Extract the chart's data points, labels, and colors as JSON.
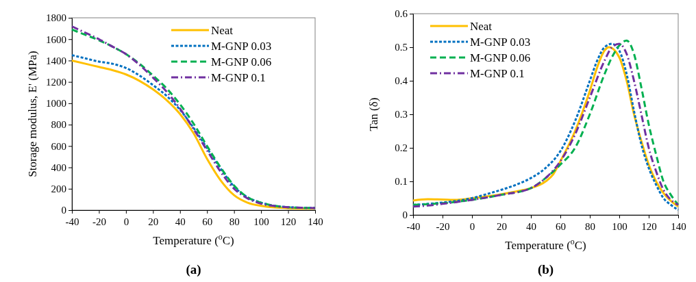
{
  "chart_data": [
    {
      "type": "line",
      "ylabel": "Storage modulus, E' (MPa)",
      "xlabel": "Temperature ($^{o}$C)",
      "annotations": [
        "(a)"
      ],
      "xlim": [
        -40,
        140
      ],
      "xticks": [
        -40,
        -20,
        0,
        20,
        40,
        60,
        80,
        100,
        120,
        140
      ],
      "ylim": [
        0,
        1800
      ],
      "yticks": [
        0,
        200,
        400,
        600,
        800,
        1000,
        1200,
        1400,
        1600,
        1800
      ],
      "grid": false,
      "legend": "top right",
      "x": [
        -40,
        -30,
        -20,
        -10,
        0,
        10,
        20,
        30,
        40,
        50,
        60,
        70,
        80,
        90,
        100,
        110,
        120,
        130,
        140
      ],
      "series": [
        {
          "name": "Neat",
          "color": "#ffc000",
          "line_style": "solid",
          "values": [
            1400,
            1370,
            1340,
            1310,
            1270,
            1210,
            1130,
            1030,
            900,
            720,
            480,
            280,
            140,
            70,
            40,
            25,
            18,
            15,
            15
          ]
        },
        {
          "name": "M-GNP 0.03",
          "color": "#0070c0",
          "line_style": "dotted",
          "values": [
            1450,
            1420,
            1390,
            1370,
            1330,
            1260,
            1170,
            1070,
            940,
            770,
            580,
            390,
            220,
            120,
            70,
            40,
            28,
            22,
            20
          ]
        },
        {
          "name": "M-GNP 0.06",
          "color": "#00b050",
          "line_style": "dashed",
          "values": [
            1690,
            1640,
            1590,
            1530,
            1460,
            1370,
            1260,
            1140,
            990,
            810,
            600,
            400,
            230,
            120,
            70,
            40,
            28,
            22,
            20
          ]
        },
        {
          "name": "M-GNP 0.1",
          "color": "#7030a0",
          "line_style": "dashdot",
          "values": [
            1720,
            1660,
            1600,
            1530,
            1460,
            1360,
            1240,
            1110,
            950,
            760,
            560,
            360,
            200,
            110,
            60,
            38,
            28,
            22,
            20
          ]
        }
      ]
    },
    {
      "type": "line",
      "ylabel": "Tan (δ)",
      "xlabel": "Temperature ($^{o}$C)",
      "annotations": [
        "(b)"
      ],
      "xlim": [
        -40,
        140
      ],
      "xticks": [
        -40,
        -20,
        0,
        20,
        40,
        60,
        80,
        100,
        120,
        140
      ],
      "ylim": [
        0,
        0.6
      ],
      "yticks": [
        0,
        0.1,
        0.2,
        0.3,
        0.4,
        0.5,
        0.6
      ],
      "grid": false,
      "legend": "top left",
      "series": [
        {
          "name": "Neat",
          "color": "#ffc000",
          "line_style": "solid",
          "x": [
            -40,
            -30,
            -20,
            -10,
            0,
            10,
            20,
            30,
            40,
            50,
            55,
            60,
            70,
            80,
            85,
            90,
            93,
            100,
            105,
            110,
            115,
            120,
            125,
            130,
            140
          ],
          "values": [
            0.043,
            0.047,
            0.046,
            0.045,
            0.05,
            0.055,
            0.062,
            0.07,
            0.08,
            0.1,
            0.12,
            0.16,
            0.25,
            0.37,
            0.44,
            0.49,
            0.5,
            0.47,
            0.4,
            0.3,
            0.22,
            0.15,
            0.1,
            0.065,
            0.025
          ]
        },
        {
          "name": "M-GNP 0.03",
          "color": "#0070c0",
          "line_style": "dotted",
          "x": [
            -40,
            -30,
            -20,
            -10,
            0,
            10,
            20,
            30,
            40,
            50,
            60,
            70,
            80,
            85,
            90,
            95,
            100,
            105,
            110,
            115,
            120,
            125,
            130,
            135,
            140
          ],
          "values": [
            0.03,
            0.033,
            0.037,
            0.042,
            0.05,
            0.062,
            0.075,
            0.09,
            0.11,
            0.14,
            0.19,
            0.28,
            0.4,
            0.46,
            0.5,
            0.51,
            0.49,
            0.42,
            0.31,
            0.21,
            0.14,
            0.09,
            0.05,
            0.03,
            0.015
          ]
        },
        {
          "name": "M-GNP 0.06",
          "color": "#00b050",
          "line_style": "dashed",
          "x": [
            -40,
            -20,
            0,
            20,
            40,
            50,
            60,
            70,
            80,
            90,
            95,
            100,
            105,
            110,
            115,
            120,
            125,
            130,
            135,
            140
          ],
          "values": [
            0.03,
            0.035,
            0.045,
            0.06,
            0.08,
            0.11,
            0.15,
            0.2,
            0.3,
            0.42,
            0.47,
            0.505,
            0.52,
            0.48,
            0.38,
            0.27,
            0.18,
            0.1,
            0.06,
            0.03
          ]
        },
        {
          "name": "M-GNP 0.1",
          "color": "#7030a0",
          "line_style": "dashdot",
          "x": [
            -40,
            -30,
            -20,
            0,
            20,
            40,
            50,
            60,
            70,
            80,
            90,
            95,
            100,
            105,
            110,
            115,
            120,
            125,
            130,
            135,
            140
          ],
          "values": [
            0.025,
            0.028,
            0.033,
            0.045,
            0.06,
            0.08,
            0.11,
            0.16,
            0.24,
            0.35,
            0.46,
            0.5,
            0.51,
            0.48,
            0.4,
            0.3,
            0.2,
            0.13,
            0.075,
            0.045,
            0.03
          ]
        }
      ]
    }
  ]
}
